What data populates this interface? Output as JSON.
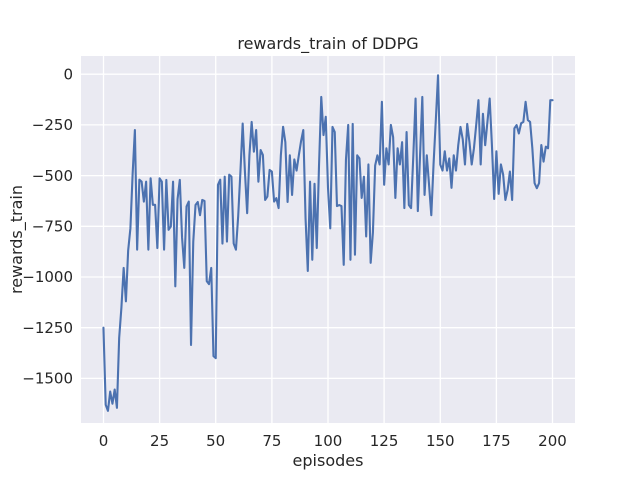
{
  "chart_data": {
    "type": "line",
    "title": "rewards_train of DDPG",
    "xlabel": "episodes",
    "ylabel": "rewards_train",
    "x_start": 0,
    "x_step": 1,
    "x_ticks": [
      0,
      25,
      50,
      75,
      100,
      125,
      150,
      175,
      200
    ],
    "y_ticks": [
      0,
      -250,
      -500,
      -750,
      -1000,
      -1250,
      -1500
    ],
    "xlim": [
      -10,
      210
    ],
    "ylim": [
      -1720,
      90
    ],
    "grid": true,
    "legend": "none",
    "style": "seaborn-darkgrid",
    "colors": {
      "figure_bg": "#ffffff",
      "plot_bg": "#eaeaf2",
      "grid": "#ffffff",
      "line": "#4c72b0",
      "text": "#262626"
    },
    "series": [
      {
        "name": "rewards_train",
        "values": [
          -1250,
          -1630,
          -1660,
          -1565,
          -1625,
          -1555,
          -1645,
          -1300,
          -1150,
          -955,
          -1120,
          -870,
          -760,
          -490,
          -275,
          -865,
          -520,
          -530,
          -628,
          -530,
          -865,
          -513,
          -644,
          -644,
          -857,
          -513,
          -530,
          -865,
          -521,
          -767,
          -751,
          -530,
          -1046,
          -616,
          -521,
          -805,
          -955,
          -652,
          -628,
          -1335,
          -825,
          -645,
          -630,
          -695,
          -620,
          -625,
          -1020,
          -1035,
          -955,
          -1390,
          -1400,
          -545,
          -520,
          -835,
          -505,
          -825,
          -495,
          -505,
          -835,
          -865,
          -700,
          -480,
          -243,
          -480,
          -685,
          -400,
          -235,
          -382,
          -275,
          -530,
          -374,
          -398,
          -620,
          -603,
          -472,
          -480,
          -628,
          -611,
          -660,
          -400,
          -259,
          -335,
          -630,
          -400,
          -595,
          -420,
          -475,
          -400,
          -330,
          -275,
          -710,
          -970,
          -530,
          -915,
          -540,
          -857,
          -450,
          -112,
          -300,
          -210,
          -560,
          -760,
          -260,
          -285,
          -650,
          -645,
          -650,
          -940,
          -420,
          -250,
          -915,
          -245,
          -890,
          -400,
          -415,
          -610,
          -505,
          -800,
          -445,
          -930,
          -780,
          -450,
          -400,
          -445,
          -136,
          -545,
          -365,
          -445,
          -250,
          -310,
          -610,
          -365,
          -445,
          -335,
          -660,
          -285,
          -645,
          -660,
          -400,
          -120,
          -675,
          -400,
          -112,
          -595,
          -400,
          -545,
          -695,
          -445,
          -230,
          -5,
          -445,
          -475,
          -380,
          -475,
          -415,
          -560,
          -400,
          -475,
          -350,
          -260,
          -320,
          -445,
          -245,
          -335,
          -445,
          -365,
          -250,
          -128,
          -445,
          -195,
          -350,
          -235,
          -120,
          -350,
          -615,
          -380,
          -590,
          -445,
          -495,
          -620,
          -570,
          -480,
          -620,
          -267,
          -251,
          -292,
          -242,
          -235,
          -136,
          -226,
          -235,
          -365,
          -537,
          -562,
          -537,
          -349,
          -431,
          -357,
          -365,
          -128,
          -128
        ]
      }
    ]
  }
}
